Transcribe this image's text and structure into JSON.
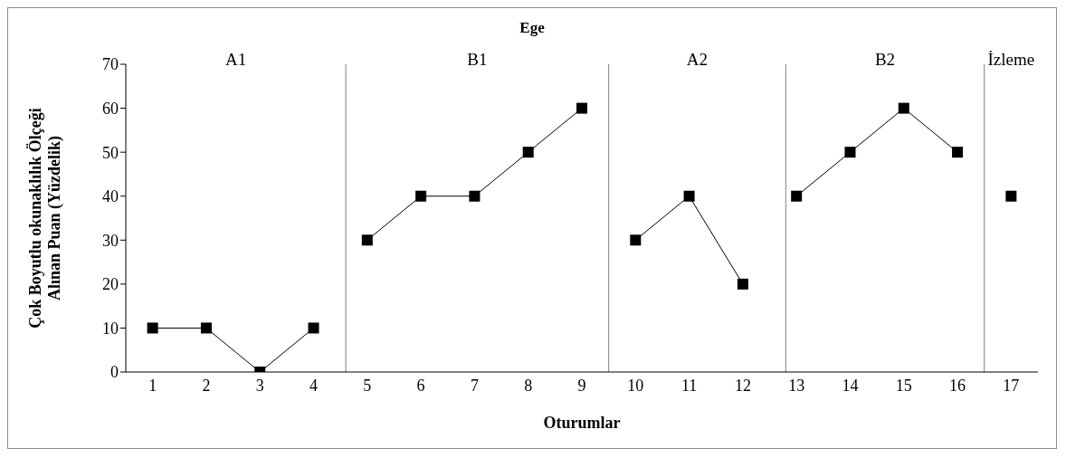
{
  "chart_data": {
    "type": "line",
    "title": "Ege",
    "xlabel": "Oturumlar",
    "ylabel": "Çok Boyutlu okunaklılık Ölçeği Alınan Puan (Yüzdelik)",
    "x": [
      1,
      2,
      3,
      4,
      5,
      6,
      7,
      8,
      9,
      10,
      11,
      12,
      13,
      14,
      15,
      16,
      17
    ],
    "series": [
      {
        "color": "#000000",
        "values": [
          10,
          10,
          0,
          10,
          null,
          null,
          null,
          null,
          null,
          null,
          null,
          null,
          null,
          null,
          null,
          null,
          null
        ]
      },
      {
        "color": "#000000",
        "values": [
          null,
          null,
          null,
          null,
          30,
          40,
          40,
          50,
          60,
          null,
          null,
          null,
          null,
          null,
          null,
          null,
          null
        ]
      },
      {
        "color": "#000000",
        "values": [
          null,
          null,
          null,
          null,
          null,
          null,
          null,
          null,
          null,
          30,
          40,
          20,
          null,
          null,
          null,
          null,
          null
        ]
      },
      {
        "color": "#000000",
        "values": [
          null,
          null,
          null,
          null,
          null,
          null,
          null,
          null,
          null,
          null,
          null,
          null,
          40,
          50,
          60,
          50,
          null
        ]
      },
      {
        "color": "#000000",
        "values": [
          null,
          null,
          null,
          null,
          null,
          null,
          null,
          null,
          null,
          null,
          null,
          null,
          null,
          null,
          null,
          null,
          40
        ]
      }
    ],
    "xlim": [
      0.5,
      17.5
    ],
    "xticks": [
      1,
      2,
      3,
      4,
      5,
      6,
      7,
      8,
      9,
      10,
      11,
      12,
      13,
      14,
      15,
      16,
      17
    ],
    "ylim": [
      0,
      70
    ],
    "yticks": [
      0,
      10,
      20,
      30,
      40,
      50,
      60,
      70
    ],
    "ref_lines": [
      {
        "axis": "x",
        "value": 4.6,
        "color": "#808080"
      },
      {
        "axis": "x",
        "value": 9.5,
        "color": "#808080"
      },
      {
        "axis": "x",
        "value": 12.8,
        "color": "#808080"
      },
      {
        "axis": "x",
        "value": 16.5,
        "color": "#808080"
      }
    ],
    "annotations": [
      "A1",
      "B1",
      "A2",
      "B2",
      "İzleme"
    ],
    "grid": false,
    "legend": false,
    "marker": "square",
    "line_style": "solid"
  }
}
